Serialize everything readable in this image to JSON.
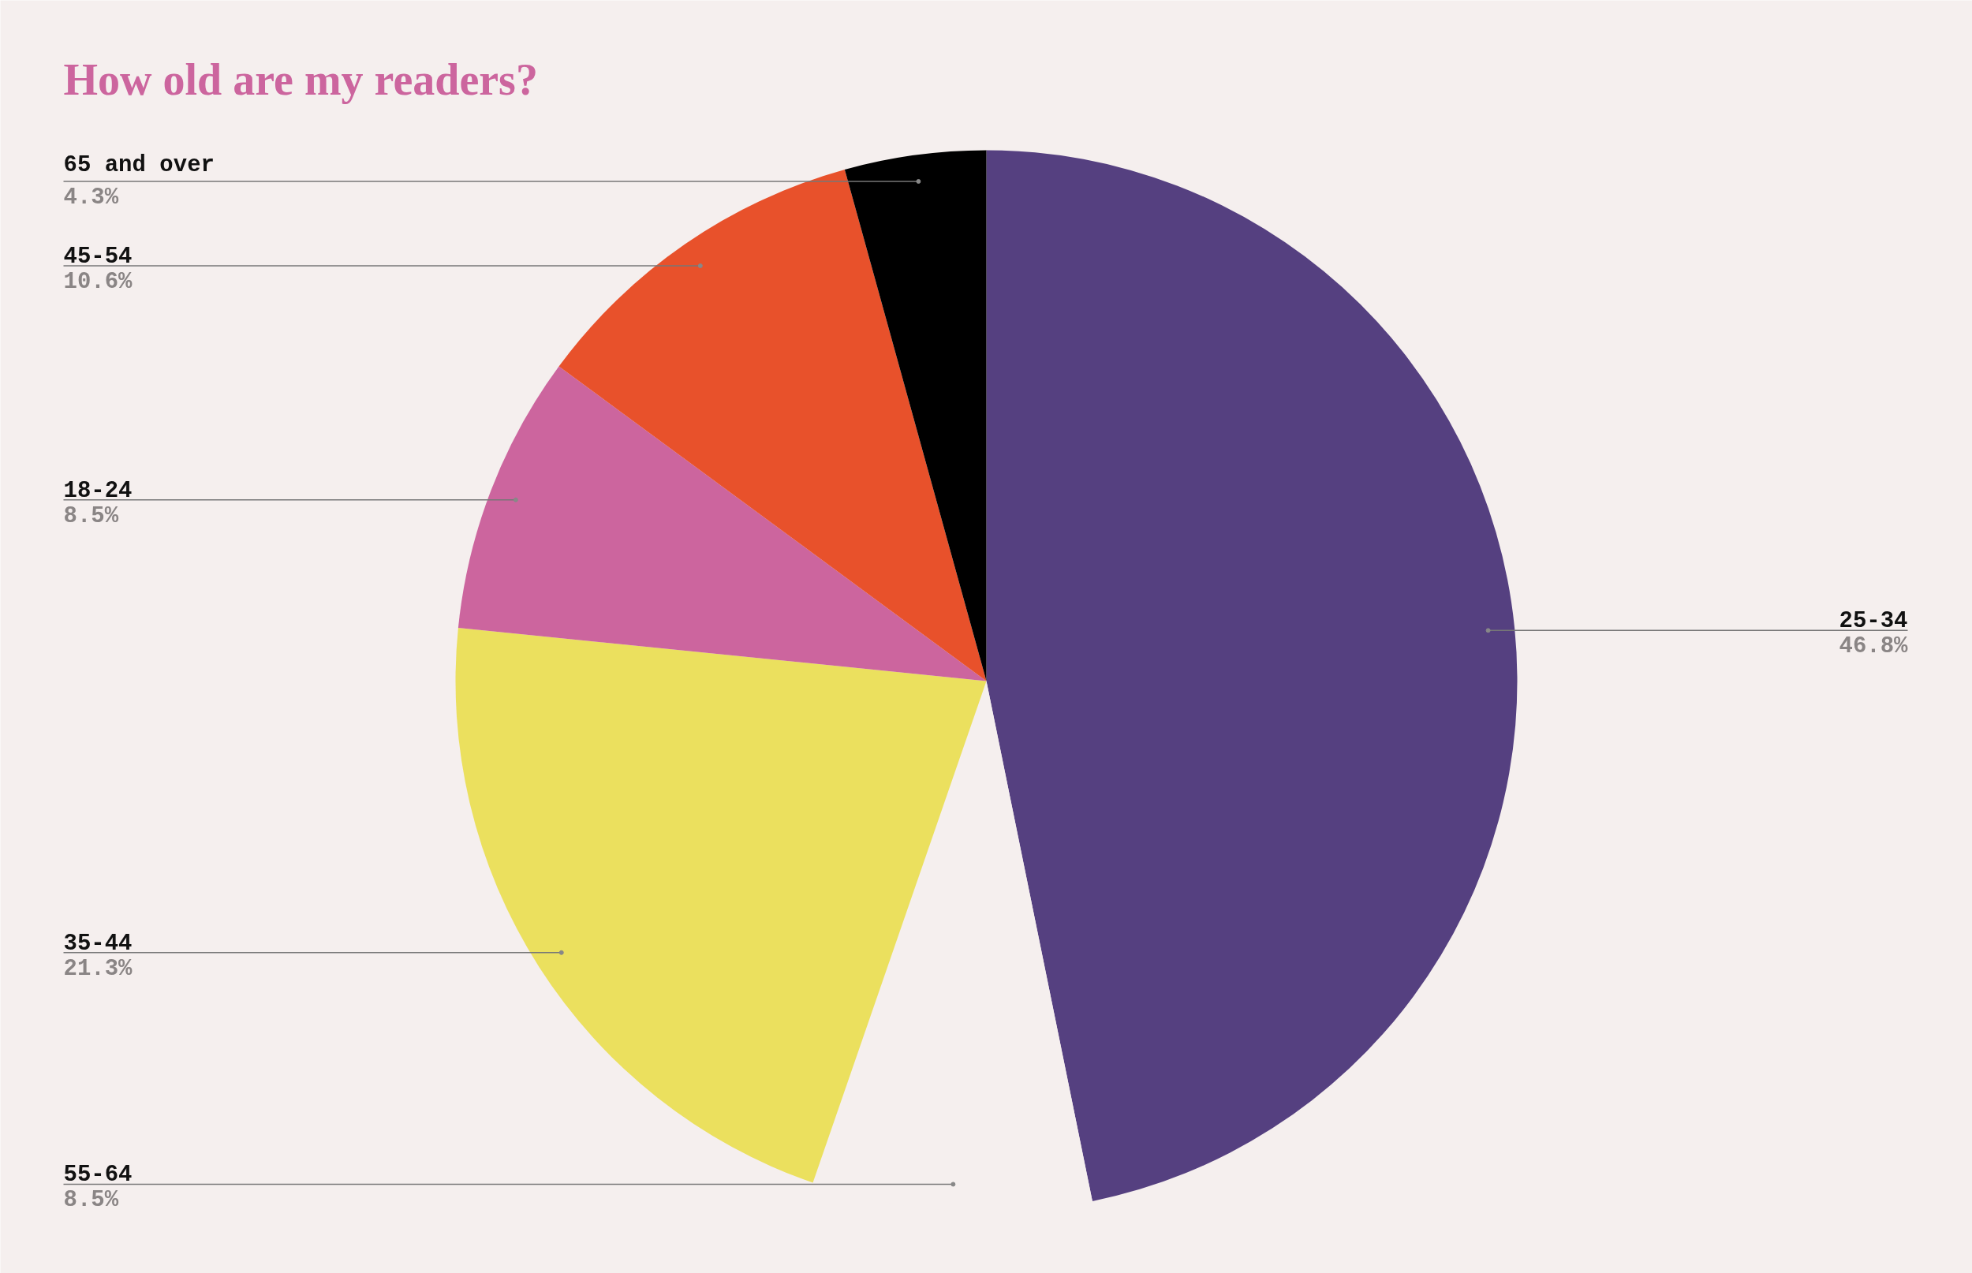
{
  "chart_data": {
    "type": "pie",
    "title": "How old are my readers?",
    "categories": [
      "25-34",
      "55-64",
      "35-44",
      "18-24",
      "45-54",
      "65 and over"
    ],
    "values": [
      46.8,
      8.5,
      21.3,
      8.5,
      10.6,
      4.3
    ],
    "colors": [
      "#554080",
      "#f5efee",
      "#ebe05e",
      "#cc659e",
      "#e8512b",
      "#000000"
    ],
    "value_labels": [
      "46.8%",
      "8.5%",
      "21.3%",
      "8.5%",
      "10.6%",
      "4.3%"
    ]
  }
}
